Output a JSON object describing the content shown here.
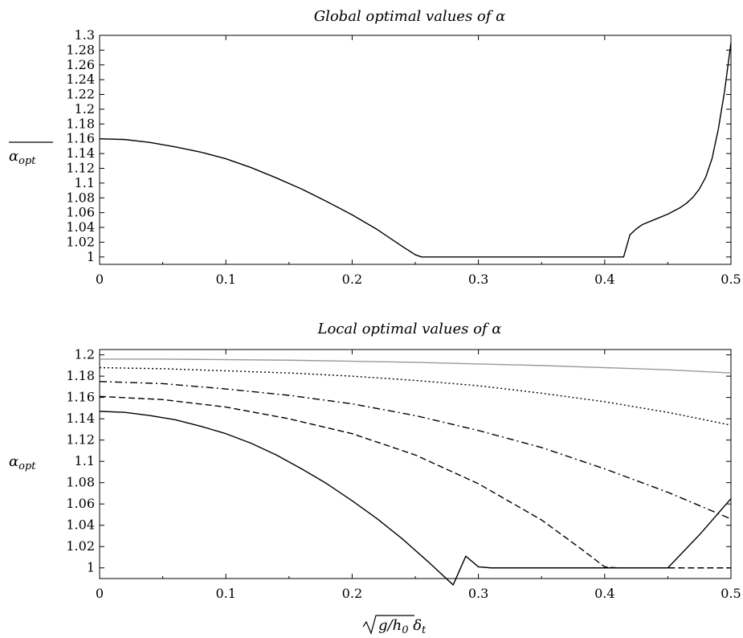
{
  "chart_data": [
    {
      "type": "line",
      "title": "Global optimal values of α",
      "xlabel": "",
      "ylabel": "α_opt (overline)",
      "xlim": [
        0,
        0.5
      ],
      "ylim": [
        0.99,
        1.3
      ],
      "x_ticks": [
        0,
        0.1,
        0.2,
        0.3,
        0.4,
        0.5
      ],
      "x_tick_labels": [
        "0",
        "0.1",
        "0.2",
        "0.3",
        "0.4",
        "0.5"
      ],
      "y_ticks": [
        1,
        1.02,
        1.04,
        1.06,
        1.08,
        1.1,
        1.12,
        1.14,
        1.16,
        1.18,
        1.2,
        1.22,
        1.24,
        1.26,
        1.28,
        1.3
      ],
      "y_tick_labels": [
        "1",
        "1.02",
        "1.04",
        "1.06",
        "1.08",
        "1.1",
        "1.12",
        "1.14",
        "1.16",
        "1.18",
        "1.2",
        "1.22",
        "1.24",
        "1.26",
        "1.28",
        "1.3"
      ],
      "grid": false,
      "series": [
        {
          "style": "solid",
          "color": "#000000",
          "x": [
            0,
            0.02,
            0.04,
            0.06,
            0.08,
            0.1,
            0.12,
            0.14,
            0.16,
            0.18,
            0.2,
            0.22,
            0.24,
            0.25,
            0.255,
            0.26,
            0.3,
            0.35,
            0.4,
            0.415,
            0.42,
            0.425,
            0.43,
            0.44,
            0.45,
            0.46,
            0.465,
            0.47,
            0.475,
            0.48,
            0.485,
            0.49,
            0.495,
            0.5
          ],
          "y": [
            1.16,
            1.159,
            1.155,
            1.149,
            1.142,
            1.133,
            1.121,
            1.107,
            1.092,
            1.075,
            1.057,
            1.037,
            1.014,
            1.003,
            1.0,
            1.0,
            1.0,
            1.0,
            1.0,
            1.0,
            1.03,
            1.038,
            1.044,
            1.051,
            1.058,
            1.067,
            1.073,
            1.081,
            1.092,
            1.108,
            1.133,
            1.173,
            1.225,
            1.29
          ]
        }
      ]
    },
    {
      "type": "line",
      "title": "Local optimal values of α",
      "xlabel": "√(g/h₀) δt",
      "ylabel": "α_opt",
      "xlim": [
        0,
        0.5
      ],
      "ylim": [
        0.99,
        1.205
      ],
      "x_ticks": [
        0,
        0.1,
        0.2,
        0.3,
        0.4,
        0.5
      ],
      "x_tick_labels": [
        "0",
        "0.1",
        "0.2",
        "0.3",
        "0.4",
        "0.5"
      ],
      "y_ticks": [
        1,
        1.02,
        1.04,
        1.06,
        1.08,
        1.1,
        1.12,
        1.14,
        1.16,
        1.18,
        1.2
      ],
      "y_tick_labels": [
        "1",
        "1.02",
        "1.04",
        "1.06",
        "1.08",
        "1.1",
        "1.12",
        "1.14",
        "1.16",
        "1.18",
        "1.2"
      ],
      "grid": false,
      "series": [
        {
          "style": "solid",
          "color": "#999999",
          "x": [
            0,
            0.05,
            0.1,
            0.15,
            0.2,
            0.25,
            0.3,
            0.35,
            0.4,
            0.45,
            0.5
          ],
          "y": [
            1.196,
            1.196,
            1.1955,
            1.195,
            1.194,
            1.193,
            1.1915,
            1.19,
            1.188,
            1.186,
            1.183
          ]
        },
        {
          "style": "dotted",
          "color": "#000000",
          "x": [
            0,
            0.05,
            0.1,
            0.15,
            0.2,
            0.25,
            0.3,
            0.35,
            0.4,
            0.45,
            0.5
          ],
          "y": [
            1.188,
            1.187,
            1.185,
            1.183,
            1.18,
            1.176,
            1.171,
            1.164,
            1.156,
            1.146,
            1.134
          ]
        },
        {
          "style": "dashdot",
          "color": "#000000",
          "x": [
            0,
            0.05,
            0.1,
            0.15,
            0.2,
            0.25,
            0.3,
            0.35,
            0.4,
            0.45,
            0.5
          ],
          "y": [
            1.175,
            1.173,
            1.168,
            1.162,
            1.154,
            1.143,
            1.129,
            1.113,
            1.093,
            1.071,
            1.046
          ]
        },
        {
          "style": "dashed",
          "color": "#000000",
          "x": [
            0,
            0.05,
            0.1,
            0.15,
            0.2,
            0.25,
            0.3,
            0.35,
            0.38,
            0.4,
            0.41,
            0.45,
            0.5
          ],
          "y": [
            1.161,
            1.158,
            1.151,
            1.14,
            1.126,
            1.106,
            1.079,
            1.045,
            1.019,
            1.001,
            1.0,
            1.0,
            1.0
          ]
        },
        {
          "style": "solid",
          "color": "#000000",
          "x": [
            0,
            0.02,
            0.04,
            0.06,
            0.08,
            0.1,
            0.12,
            0.14,
            0.16,
            0.18,
            0.2,
            0.22,
            0.24,
            0.26,
            0.28,
            0.29,
            0.3,
            0.31,
            0.35,
            0.4,
            0.45,
            0.475,
            0.5
          ],
          "y": [
            1.147,
            1.146,
            1.143,
            1.139,
            1.133,
            1.126,
            1.117,
            1.106,
            1.093,
            1.079,
            1.063,
            1.046,
            1.027,
            1.006,
            0.984,
            1.011,
            1.001,
            1.0,
            1.0,
            1.0,
            1.0,
            1.031,
            1.065
          ]
        }
      ]
    }
  ]
}
